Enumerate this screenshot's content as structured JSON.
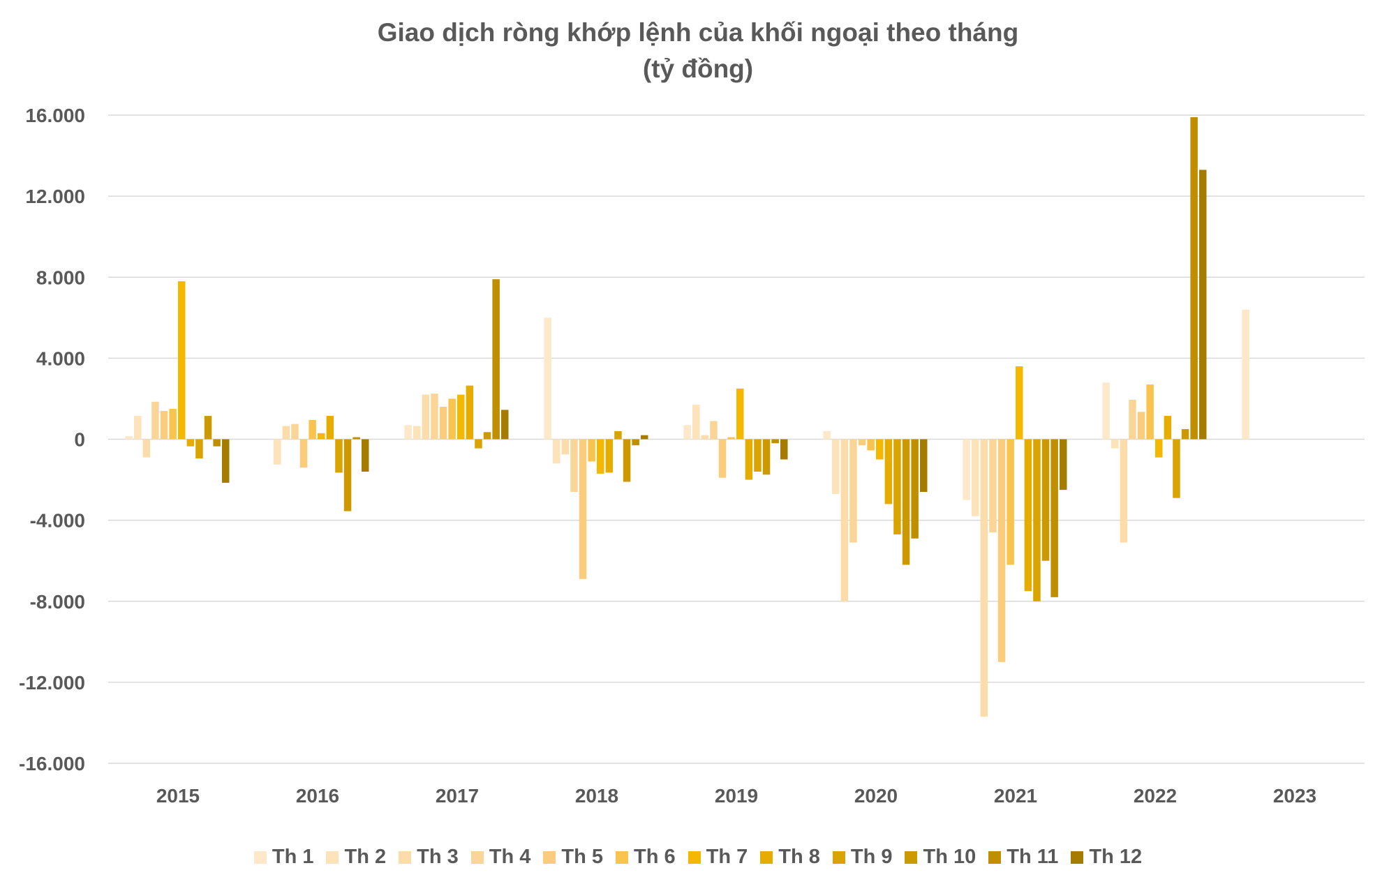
{
  "chart_data": {
    "type": "bar",
    "title": "Giao dịch ròng khớp lệnh của khối ngoại theo tháng",
    "subtitle": "(tỷ đồng)",
    "categories": [
      "2015",
      "2016",
      "2017",
      "2018",
      "2019",
      "2020",
      "2021",
      "2022",
      "2023"
    ],
    "ylim": [
      -16000,
      16000
    ],
    "yticks": [
      16000,
      12000,
      8000,
      4000,
      0,
      -4000,
      -8000,
      -12000,
      -16000
    ],
    "ytick_labels": [
      "16.000",
      "12.000",
      "8.000",
      "4.000",
      "0",
      "-4.000",
      "-8.000",
      "-12.000",
      "-16.000"
    ],
    "grid": true,
    "legend_position": "bottom",
    "series": [
      {
        "name": "Th 1",
        "color": "#FDE9C9",
        "values": [
          150,
          null,
          700,
          6000,
          700,
          400,
          -3000,
          2800,
          6400
        ]
      },
      {
        "name": "Th 2",
        "color": "#FDE3BA",
        "values": [
          1150,
          -1250,
          650,
          -1200,
          1700,
          -2700,
          -3800,
          -450,
          null
        ]
      },
      {
        "name": "Th 3",
        "color": "#FCDCAA",
        "values": [
          -900,
          650,
          2200,
          -750,
          200,
          -8000,
          -13700,
          -5100,
          null
        ]
      },
      {
        "name": "Th 4",
        "color": "#FBD598",
        "values": [
          1850,
          750,
          2250,
          -2600,
          900,
          -5100,
          -4600,
          1950,
          null
        ]
      },
      {
        "name": "Th 5",
        "color": "#FACC7E",
        "values": [
          1400,
          -1400,
          1600,
          -6900,
          -1900,
          -300,
          -11000,
          1350,
          null
        ]
      },
      {
        "name": "Th 6",
        "color": "#F8C44E",
        "values": [
          1500,
          950,
          2000,
          -1100,
          100,
          -550,
          -6200,
          2700,
          null
        ]
      },
      {
        "name": "Th 7",
        "color": "#F5B800",
        "values": [
          7800,
          300,
          2200,
          -1700,
          2500,
          -1000,
          3600,
          -900,
          null
        ]
      },
      {
        "name": "Th 8",
        "color": "#E6AC00",
        "values": [
          -350,
          1150,
          2650,
          -1650,
          -2000,
          -3200,
          -7500,
          1150,
          null
        ]
      },
      {
        "name": "Th 9",
        "color": "#D9A400",
        "values": [
          -950,
          -1650,
          -450,
          400,
          -1600,
          -4700,
          -8000,
          -2900,
          null
        ]
      },
      {
        "name": "Th 10",
        "color": "#CC9A00",
        "values": [
          1150,
          -3550,
          350,
          -2100,
          -1750,
          -6200,
          -6000,
          500,
          null
        ]
      },
      {
        "name": "Th 11",
        "color": "#BF8F00",
        "values": [
          -350,
          100,
          7900,
          -300,
          -200,
          -4900,
          -7800,
          15900,
          null
        ]
      },
      {
        "name": "Th 12",
        "color": "#A67C00",
        "values": [
          -2150,
          -1600,
          1450,
          200,
          -1000,
          -2600,
          -2500,
          13300,
          null
        ]
      }
    ]
  }
}
